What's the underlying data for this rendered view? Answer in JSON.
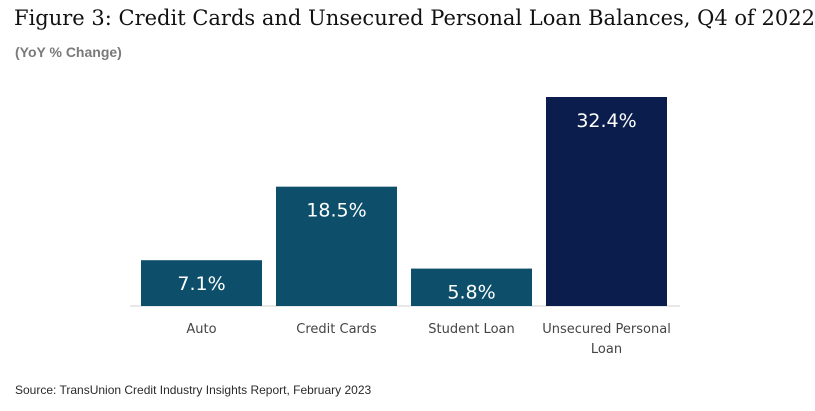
{
  "title": "Figure 3: Credit Cards and Unsecured Personal Loan Balances, Q4 of 2022",
  "subtitle": "(YoY % Change)",
  "source": "Source: TransUnion Credit Industry Insights Report, February 2023",
  "chart_data": {
    "type": "bar",
    "categories": [
      "Auto",
      "Credit Cards",
      "Student Loan",
      "Unsecured Personal Loan"
    ],
    "category_lines": [
      [
        "Auto"
      ],
      [
        "Credit Cards"
      ],
      [
        "Student Loan"
      ],
      [
        "Unsecured Personal",
        "Loan"
      ]
    ],
    "values": [
      7.1,
      18.5,
      5.8,
      32.4
    ],
    "value_labels": [
      "7.1%",
      "18.5%",
      "5.8%",
      "32.4%"
    ],
    "colors": [
      "#0d4f6b",
      "#0d4f6b",
      "#0d4f6b",
      "#0b1d4c"
    ],
    "ylim": [
      0,
      32.4
    ],
    "grid": false,
    "legend": "none"
  }
}
